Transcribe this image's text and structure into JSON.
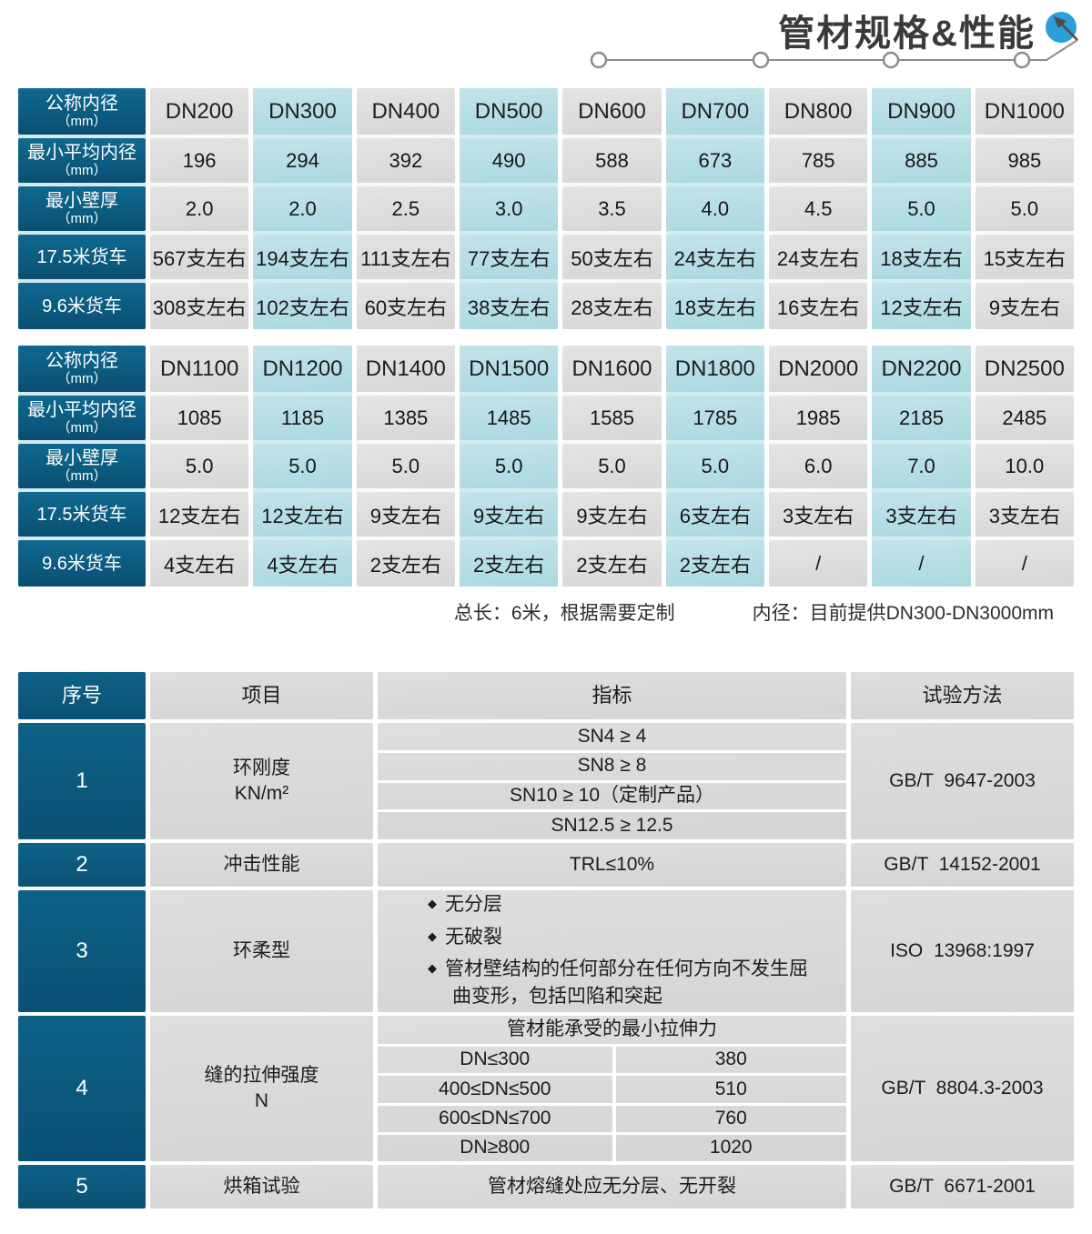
{
  "header": {
    "title": "管材规格&性能",
    "decoration": "timeline-line-with-nodes",
    "badge_icon": "cursor-arrow-icon",
    "badge_color": "#2a9fd8",
    "line_color": "#8c8c8c"
  },
  "colors": {
    "dark_blue": "#0b5c80",
    "cell_gray": "#dcdcdc",
    "cell_blue": "#b2dbe2",
    "text_dark": "#1c1c1c"
  },
  "spec_row_labels": [
    {
      "l1": "公称内径",
      "l2": "（mm）"
    },
    {
      "l1": "最小平均内径",
      "l2": "（mm）"
    },
    {
      "l1": "最小壁厚",
      "l2": "（mm）"
    },
    {
      "l1": "17.5米货车",
      "l2": ""
    },
    {
      "l1": "9.6米货车",
      "l2": ""
    }
  ],
  "spec_tables": [
    {
      "columns": [
        {
          "dn": "DN200",
          "values": [
            "196",
            "2.0",
            "567支左右",
            "308支左右"
          ]
        },
        {
          "dn": "DN300",
          "values": [
            "294",
            "2.0",
            "194支左右",
            "102支左右"
          ]
        },
        {
          "dn": "DN400",
          "values": [
            "392",
            "2.5",
            "111支左右",
            "60支左右"
          ]
        },
        {
          "dn": "DN500",
          "values": [
            "490",
            "3.0",
            "77支左右",
            "38支左右"
          ]
        },
        {
          "dn": "DN600",
          "values": [
            "588",
            "3.5",
            "50支左右",
            "28支左右"
          ]
        },
        {
          "dn": "DN700",
          "values": [
            "673",
            "4.0",
            "24支左右",
            "18支左右"
          ]
        },
        {
          "dn": "DN800",
          "values": [
            "785",
            "4.5",
            "24支左右",
            "16支左右"
          ]
        },
        {
          "dn": "DN900",
          "values": [
            "885",
            "5.0",
            "18支左右",
            "12支左右"
          ]
        },
        {
          "dn": "DN1000",
          "values": [
            "985",
            "5.0",
            "15支左右",
            "9支左右"
          ]
        }
      ]
    },
    {
      "columns": [
        {
          "dn": "DN1100",
          "values": [
            "1085",
            "5.0",
            "12支左右",
            "4支左右"
          ]
        },
        {
          "dn": "DN1200",
          "values": [
            "1185",
            "5.0",
            "12支左右",
            "4支左右"
          ]
        },
        {
          "dn": "DN1400",
          "values": [
            "1385",
            "5.0",
            "9支左右",
            "2支左右"
          ]
        },
        {
          "dn": "DN1500",
          "values": [
            "1485",
            "5.0",
            "9支左右",
            "2支左右"
          ]
        },
        {
          "dn": "DN1600",
          "values": [
            "1585",
            "5.0",
            "9支左右",
            "2支左右"
          ]
        },
        {
          "dn": "DN1800",
          "values": [
            "1785",
            "5.0",
            "6支左右",
            "2支左右"
          ]
        },
        {
          "dn": "DN2000",
          "values": [
            "1985",
            "6.0",
            "3支左右",
            "/"
          ]
        },
        {
          "dn": "DN2200",
          "values": [
            "2185",
            "7.0",
            "3支左右",
            "/"
          ]
        },
        {
          "dn": "DN2500",
          "values": [
            "2485",
            "10.0",
            "3支左右",
            "/"
          ]
        }
      ]
    }
  ],
  "notes": {
    "length_note": "总长：6米，根据需要定制",
    "diameter_note": "内径：目前提供DN300-DN3000mm"
  },
  "perf_table": {
    "headers": [
      "序号",
      "项目",
      "指标",
      "试验方法"
    ],
    "bullet_glyph": "◆",
    "rows": [
      {
        "no": "1",
        "item_lines": [
          "环刚度",
          "KN/m²"
        ],
        "indicator_list": [
          "SN4 ≥ 4",
          "SN8 ≥ 8",
          "SN10 ≥ 10（定制产品）",
          "SN12.5 ≥ 12.5"
        ],
        "method": "GB/T  9647-2003"
      },
      {
        "no": "2",
        "item_lines": [
          "冲击性能"
        ],
        "indicator": "TRL≤10%",
        "method": "GB/T  14152-2001"
      },
      {
        "no": "3",
        "item_lines": [
          "环柔型"
        ],
        "bullets": [
          "无分层",
          "无破裂",
          "管材壁结构的任何部分在任何方向不发生屈曲变形，包括凹陷和突起"
        ],
        "method": "ISO  13968:1997"
      },
      {
        "no": "4",
        "item_lines": [
          "缝的拉伸强度",
          "N"
        ],
        "sub_header": "管材能承受的最小拉伸力",
        "sub_rows": [
          [
            "DN≤300",
            "380"
          ],
          [
            "400≤DN≤500",
            "510"
          ],
          [
            "600≤DN≤700",
            "760"
          ],
          [
            "DN≥800",
            "1020"
          ]
        ],
        "method": "GB/T  8804.3-2003"
      },
      {
        "no": "5",
        "item_lines": [
          "烘箱试验"
        ],
        "indicator": "管材熔缝处应无分层、无开裂",
        "method": "GB/T  6671-2001"
      }
    ]
  }
}
